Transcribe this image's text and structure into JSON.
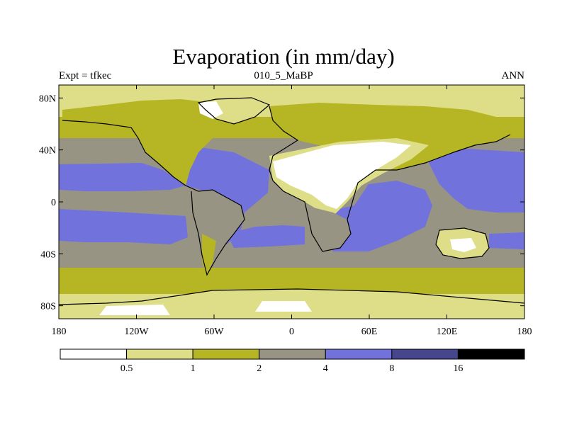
{
  "title": "Evaporation (in mm/day)",
  "left_label": "Expt = tfkec",
  "center_label": "010_5_MaBP",
  "right_label": "ANN",
  "map": {
    "type": "filled-contour-map",
    "projection": "cylindrical-equidistant",
    "lon_range": [
      -180,
      180
    ],
    "lat_range": [
      -90,
      90
    ],
    "lat_ticks": [
      {
        "value": 80,
        "label": "80N"
      },
      {
        "value": 40,
        "label": "40N"
      },
      {
        "value": 0,
        "label": "0"
      },
      {
        "value": -40,
        "label": "40S"
      },
      {
        "value": -80,
        "label": "80S"
      }
    ],
    "lon_ticks": [
      {
        "value": -180,
        "label": "180"
      },
      {
        "value": -120,
        "label": "120W"
      },
      {
        "value": -60,
        "label": "60W"
      },
      {
        "value": 0,
        "label": "0"
      },
      {
        "value": 60,
        "label": "60E"
      },
      {
        "value": 120,
        "label": "120E"
      },
      {
        "value": 180,
        "label": "180"
      }
    ]
  },
  "colorbar": {
    "levels": [
      "0.5",
      "1",
      "2",
      "4",
      "8",
      "16"
    ],
    "colors": [
      "#ffffff",
      "#dede88",
      "#b6b624",
      "#989484",
      "#7272dc",
      "#46468c",
      "#000000"
    ]
  },
  "colors": {
    "lt05": "#ffffff",
    "c05_1": "#dede88",
    "c1_2": "#b6b624",
    "c2_4": "#989484",
    "c4_8": "#7272dc",
    "coast": "#000000"
  }
}
